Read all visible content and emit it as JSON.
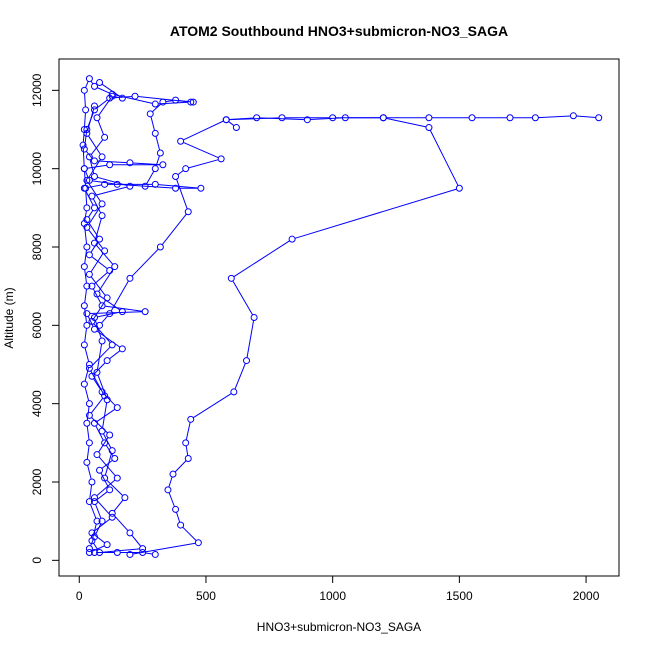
{
  "chart_data": {
    "type": "line",
    "title": "ATOM2 Southbound HNO3+submicron-NO3_SAGA",
    "xlabel": "HNO3+submicron-NO3_SAGA",
    "ylabel": "Altitude (m)",
    "xlim": [
      -80,
      2130
    ],
    "ylim": [
      -400,
      12800
    ],
    "x_ticks": [
      0,
      500,
      1000,
      1500,
      2000
    ],
    "y_ticks": [
      0,
      2000,
      4000,
      6000,
      8000,
      10000,
      12000
    ],
    "x_tick_labels": [
      "0",
      "500",
      "1000",
      "1500",
      "2000"
    ],
    "y_tick_labels": [
      "0",
      "2000",
      "4000",
      "6000",
      "8000",
      "10000",
      "12000"
    ],
    "grid": false,
    "legend": "none",
    "marker": "open-circle",
    "series_color": "#0000ff",
    "series": [
      {
        "points": [
          [
            300,
            150
          ],
          [
            250,
            200
          ],
          [
            150,
            200
          ],
          [
            60,
            200
          ],
          [
            40,
            300
          ],
          [
            60,
            600
          ],
          [
            90,
            1000
          ],
          [
            60,
            1500
          ],
          [
            120,
            1800
          ],
          [
            80,
            2300
          ],
          [
            140,
            2600
          ],
          [
            100,
            3000
          ],
          [
            60,
            3500
          ],
          [
            150,
            3900
          ],
          [
            90,
            4300
          ],
          [
            50,
            4700
          ],
          [
            110,
            5100
          ],
          [
            170,
            5400
          ],
          [
            60,
            5900
          ],
          [
            30,
            6300
          ],
          [
            260,
            6350
          ],
          [
            90,
            6500
          ],
          [
            50,
            7000
          ],
          [
            120,
            7400
          ],
          [
            40,
            7800
          ],
          [
            80,
            8200
          ],
          [
            30,
            8700
          ],
          [
            60,
            9000
          ],
          [
            20,
            9500
          ],
          [
            100,
            9600
          ],
          [
            300,
            9600
          ],
          [
            480,
            9500
          ],
          [
            380,
            9500
          ],
          [
            150,
            9600
          ],
          [
            40,
            9700
          ],
          [
            20,
            10000
          ],
          [
            120,
            10100
          ],
          [
            330,
            10100
          ],
          [
            200,
            10150
          ],
          [
            60,
            10200
          ],
          [
            20,
            10500
          ],
          [
            30,
            11000
          ],
          [
            60,
            11500
          ],
          [
            120,
            11800
          ],
          [
            220,
            11850
          ],
          [
            440,
            11700
          ],
          [
            300,
            11650
          ],
          [
            130,
            11900
          ],
          [
            60,
            12100
          ],
          [
            40,
            12300
          ],
          [
            20,
            12000
          ],
          [
            25,
            11500
          ],
          [
            20,
            11000
          ],
          [
            15,
            10600
          ],
          [
            20,
            10000
          ],
          [
            25,
            9500
          ],
          [
            30,
            9000
          ],
          [
            20,
            8600
          ],
          [
            30,
            8000
          ],
          [
            20,
            7500
          ],
          [
            30,
            7000
          ],
          [
            20,
            6500
          ],
          [
            30,
            6000
          ],
          [
            20,
            5500
          ],
          [
            40,
            5000
          ],
          [
            20,
            4500
          ],
          [
            40,
            4000
          ],
          [
            30,
            3500
          ],
          [
            40,
            3000
          ],
          [
            30,
            2500
          ],
          [
            50,
            2000
          ],
          [
            40,
            1500
          ],
          [
            70,
            1000
          ],
          [
            50,
            500
          ],
          [
            80,
            200
          ],
          [
            250,
            300
          ],
          [
            200,
            700
          ],
          [
            130,
            1200
          ],
          [
            180,
            1600
          ],
          [
            100,
            2100
          ],
          [
            130,
            2800
          ],
          [
            90,
            3300
          ],
          [
            110,
            4100
          ],
          [
            70,
            4800
          ],
          [
            90,
            5600
          ],
          [
            60,
            6200
          ],
          [
            170,
            6350
          ],
          [
            70,
            6800
          ],
          [
            140,
            7500
          ],
          [
            60,
            8100
          ],
          [
            90,
            8800
          ],
          [
            50,
            9300
          ],
          [
            200,
            9550
          ],
          [
            60,
            9800
          ],
          [
            40,
            10300
          ],
          [
            100,
            10800
          ],
          [
            70,
            11300
          ],
          [
            130,
            11850
          ],
          [
            170,
            11800
          ],
          [
            80,
            12200
          ]
        ]
      },
      {
        "points": [
          [
            200,
            150
          ],
          [
            470,
            450
          ],
          [
            400,
            900
          ],
          [
            380,
            1300
          ],
          [
            350,
            1800
          ],
          [
            370,
            2200
          ],
          [
            430,
            2600
          ],
          [
            420,
            3000
          ],
          [
            440,
            3600
          ],
          [
            610,
            4300
          ],
          [
            660,
            5100
          ],
          [
            690,
            6200
          ],
          [
            600,
            7200
          ],
          [
            840,
            8200
          ],
          [
            1500,
            9500
          ],
          [
            1380,
            11050
          ],
          [
            1200,
            11300
          ],
          [
            1050,
            11300
          ],
          [
            900,
            11250
          ],
          [
            700,
            11300
          ],
          [
            580,
            11250
          ],
          [
            400,
            10700
          ],
          [
            560,
            10250
          ],
          [
            420,
            10000
          ],
          [
            380,
            9800
          ],
          [
            430,
            8900
          ],
          [
            320,
            8000
          ],
          [
            200,
            7200
          ],
          [
            120,
            6300
          ],
          [
            80,
            6000
          ]
        ]
      },
      {
        "points": [
          [
            620,
            11050
          ],
          [
            580,
            11250
          ],
          [
            800,
            11300
          ],
          [
            1000,
            11300
          ],
          [
            1200,
            11300
          ],
          [
            1380,
            11300
          ],
          [
            1550,
            11300
          ],
          [
            1700,
            11300
          ],
          [
            1800,
            11300
          ],
          [
            1950,
            11350
          ],
          [
            2050,
            11300
          ]
        ]
      },
      {
        "points": [
          [
            260,
            9550
          ],
          [
            300,
            10000
          ],
          [
            320,
            10400
          ],
          [
            300,
            10900
          ],
          [
            280,
            11400
          ],
          [
            330,
            11700
          ],
          [
            380,
            11750
          ],
          [
            450,
            11700
          ]
        ]
      },
      {
        "points": [
          [
            40,
            200
          ],
          [
            110,
            400
          ],
          [
            50,
            700
          ],
          [
            130,
            1100
          ],
          [
            60,
            1600
          ],
          [
            150,
            2100
          ],
          [
            70,
            2700
          ],
          [
            120,
            3200
          ],
          [
            40,
            3700
          ],
          [
            100,
            4200
          ],
          [
            40,
            4900
          ],
          [
            130,
            5500
          ],
          [
            50,
            6100
          ],
          [
            110,
            6700
          ],
          [
            40,
            7300
          ],
          [
            100,
            7900
          ],
          [
            30,
            8500
          ],
          [
            90,
            9100
          ],
          [
            30,
            9700
          ],
          [
            90,
            10300
          ],
          [
            30,
            10900
          ],
          [
            60,
            11600
          ]
        ]
      }
    ]
  }
}
